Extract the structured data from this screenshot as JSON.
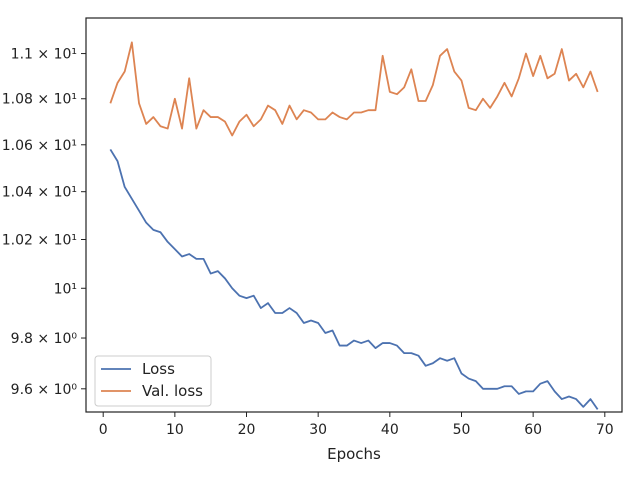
{
  "chart_data": {
    "type": "line",
    "title": "",
    "xlabel": "Epochs",
    "ylabel": "",
    "y_scale": "log",
    "grid": false,
    "legend_position": "lower-left",
    "xlim": [
      -2.4,
      72.4
    ],
    "ylim": [
      9.51,
      11.16
    ],
    "x_ticks": [
      {
        "value": 0,
        "label": "0"
      },
      {
        "value": 10,
        "label": "10"
      },
      {
        "value": 20,
        "label": "20"
      },
      {
        "value": 30,
        "label": "30"
      },
      {
        "value": 40,
        "label": "40"
      },
      {
        "value": 50,
        "label": "50"
      },
      {
        "value": 60,
        "label": "60"
      },
      {
        "value": 70,
        "label": "70"
      }
    ],
    "y_ticks": [
      {
        "value": 9.6,
        "label": "9.6 × 10⁰"
      },
      {
        "value": 9.8,
        "label": "9.8 × 10⁰"
      },
      {
        "value": 10.0,
        "label": "10¹"
      },
      {
        "value": 10.2,
        "label": "1.02 × 10¹"
      },
      {
        "value": 10.4,
        "label": "1.04 × 10¹"
      },
      {
        "value": 10.6,
        "label": "1.06 × 10¹"
      },
      {
        "value": 10.8,
        "label": "1.08 × 10¹"
      },
      {
        "value": 11.0,
        "label": "1.1 × 10¹"
      }
    ],
    "x": [
      1,
      2,
      3,
      4,
      5,
      6,
      7,
      8,
      9,
      10,
      11,
      12,
      13,
      14,
      15,
      16,
      17,
      18,
      19,
      20,
      21,
      22,
      23,
      24,
      25,
      26,
      27,
      28,
      29,
      30,
      31,
      32,
      33,
      34,
      35,
      36,
      37,
      38,
      39,
      40,
      41,
      42,
      43,
      44,
      45,
      46,
      47,
      48,
      49,
      50,
      51,
      52,
      53,
      54,
      55,
      56,
      57,
      58,
      59,
      60,
      61,
      62,
      63,
      64,
      65,
      66,
      67,
      68,
      69
    ],
    "series": [
      {
        "name": "Loss",
        "color": "#4c72b0",
        "values": [
          10.58,
          10.53,
          10.42,
          10.37,
          10.32,
          10.27,
          10.24,
          10.23,
          10.19,
          10.16,
          10.13,
          10.14,
          10.12,
          10.12,
          10.06,
          10.07,
          10.04,
          10.0,
          9.97,
          9.96,
          9.97,
          9.92,
          9.94,
          9.9,
          9.9,
          9.92,
          9.9,
          9.86,
          9.87,
          9.86,
          9.82,
          9.83,
          9.77,
          9.77,
          9.79,
          9.78,
          9.79,
          9.76,
          9.78,
          9.78,
          9.77,
          9.74,
          9.74,
          9.73,
          9.69,
          9.7,
          9.72,
          9.71,
          9.72,
          9.66,
          9.64,
          9.63,
          9.6,
          9.6,
          9.6,
          9.61,
          9.61,
          9.58,
          9.59,
          9.59,
          9.62,
          9.63,
          9.59,
          9.56,
          9.57,
          9.56,
          9.53,
          9.56,
          9.52
        ]
      },
      {
        "name": "Val. loss",
        "color": "#dd8452",
        "values": [
          10.78,
          10.87,
          10.92,
          11.05,
          10.78,
          10.69,
          10.72,
          10.68,
          10.67,
          10.8,
          10.67,
          10.89,
          10.67,
          10.75,
          10.72,
          10.72,
          10.7,
          10.64,
          10.7,
          10.73,
          10.68,
          10.71,
          10.77,
          10.75,
          10.69,
          10.77,
          10.71,
          10.75,
          10.74,
          10.71,
          10.71,
          10.74,
          10.72,
          10.71,
          10.74,
          10.74,
          10.75,
          10.75,
          10.99,
          10.83,
          10.82,
          10.85,
          10.93,
          10.79,
          10.79,
          10.86,
          10.99,
          11.02,
          10.92,
          10.88,
          10.76,
          10.75,
          10.8,
          10.76,
          10.81,
          10.87,
          10.81,
          10.89,
          11.0,
          10.9,
          10.99,
          10.89,
          10.91,
          11.02,
          10.88,
          10.91,
          10.85,
          10.92,
          10.83
        ]
      }
    ]
  }
}
